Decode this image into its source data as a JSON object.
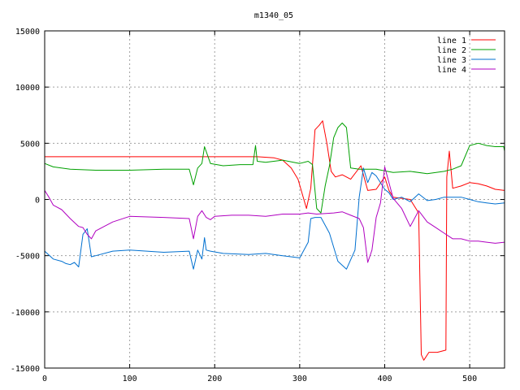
{
  "chart_data": {
    "type": "line",
    "title": "m1340_05",
    "xlabel": "",
    "ylabel": "",
    "xlim": [
      0,
      541
    ],
    "ylim": [
      -15000,
      15000
    ],
    "xticks": [
      0,
      100,
      200,
      300,
      400,
      500
    ],
    "yticks": [
      -15000,
      -10000,
      -5000,
      0,
      5000,
      10000,
      15000
    ],
    "grid": true,
    "legend_position": "top-right",
    "series": [
      {
        "name": "line 1",
        "color": "#ff0000",
        "x": [
          0,
          250,
          270,
          280,
          290,
          298,
          303,
          308,
          313,
          318,
          323,
          327,
          332,
          337,
          342,
          350,
          360,
          372,
          380,
          390,
          400,
          405,
          410,
          420,
          430,
          440,
          443,
          446,
          452,
          462,
          472,
          473,
          476,
          480,
          490,
          500,
          510,
          520,
          530,
          541
        ],
        "y": [
          3800,
          3800,
          3700,
          3500,
          2800,
          1800,
          500,
          -800,
          1000,
          6200,
          6600,
          7000,
          5000,
          2500,
          2000,
          2200,
          1800,
          3000,
          800,
          900,
          2000,
          800,
          200,
          100,
          0,
          -1200,
          -13800,
          -14300,
          -13600,
          -13600,
          -13400,
          2000,
          4300,
          1000,
          1200,
          1500,
          1400,
          1200,
          900,
          800
        ]
      },
      {
        "name": "line 2",
        "color": "#00a000",
        "x": [
          0,
          10,
          30,
          60,
          100,
          140,
          170,
          175,
          180,
          185,
          188,
          195,
          210,
          230,
          245,
          248,
          250,
          260,
          280,
          300,
          310,
          315,
          320,
          325,
          330,
          335,
          340,
          345,
          350,
          355,
          360,
          370,
          380,
          390,
          410,
          430,
          450,
          470,
          480,
          490,
          500,
          510,
          520,
          530,
          540,
          541
        ],
        "y": [
          3200,
          2900,
          2700,
          2600,
          2600,
          2700,
          2700,
          1300,
          2800,
          3200,
          4700,
          3200,
          3000,
          3100,
          3100,
          4800,
          3400,
          3300,
          3500,
          3200,
          3400,
          3100,
          -800,
          -1200,
          1200,
          3000,
          5500,
          6400,
          6800,
          6400,
          2800,
          2700,
          2700,
          2700,
          2400,
          2500,
          2300,
          2500,
          2700,
          3000,
          4800,
          5000,
          4800,
          4700,
          4700,
          4300
        ]
      },
      {
        "name": "line 3",
        "color": "#0070d0",
        "x": [
          0,
          10,
          20,
          25,
          30,
          35,
          40,
          45,
          50,
          55,
          60,
          80,
          100,
          140,
          170,
          175,
          180,
          185,
          188,
          190,
          195,
          210,
          240,
          260,
          280,
          300,
          310,
          313,
          318,
          325,
          335,
          345,
          355,
          365,
          370,
          375,
          380,
          385,
          390,
          400,
          405,
          410,
          420,
          430,
          440,
          450,
          460,
          470,
          480,
          490,
          500,
          510,
          520,
          530,
          541
        ],
        "y": [
          -4600,
          -5300,
          -5500,
          -5700,
          -5800,
          -5600,
          -6000,
          -3100,
          -2600,
          -5100,
          -5000,
          -4600,
          -4500,
          -4700,
          -4600,
          -6200,
          -4500,
          -5300,
          -3400,
          -4500,
          -4600,
          -4800,
          -4900,
          -4800,
          -5000,
          -5200,
          -3800,
          -1700,
          -1600,
          -1600,
          -3000,
          -5500,
          -6200,
          -4500,
          200,
          2800,
          1500,
          2400,
          2100,
          900,
          600,
          0,
          200,
          -200,
          500,
          -100,
          0,
          200,
          200,
          200,
          0,
          -200,
          -300,
          -400,
          -300
        ]
      },
      {
        "name": "line 4",
        "color": "#b000c0",
        "x": [
          0,
          5,
          10,
          20,
          30,
          40,
          45,
          50,
          55,
          60,
          80,
          100,
          140,
          170,
          175,
          180,
          185,
          190,
          195,
          200,
          220,
          240,
          260,
          280,
          300,
          310,
          320,
          340,
          350,
          360,
          370,
          375,
          380,
          385,
          390,
          395,
          400,
          410,
          420,
          430,
          440,
          450,
          460,
          470,
          480,
          490,
          500,
          510,
          520,
          530,
          541
        ],
        "y": [
          800,
          200,
          -500,
          -900,
          -1700,
          -2400,
          -2500,
          -3100,
          -3500,
          -2800,
          -2000,
          -1500,
          -1600,
          -1700,
          -3500,
          -1500,
          -1000,
          -1600,
          -1800,
          -1500,
          -1400,
          -1400,
          -1500,
          -1300,
          -1300,
          -1200,
          -1300,
          -1200,
          -1100,
          -1400,
          -1700,
          -2500,
          -5600,
          -4500,
          -1600,
          -300,
          2900,
          100,
          -800,
          -2400,
          -1000,
          -2000,
          -2500,
          -3000,
          -3500,
          -3500,
          -3700,
          -3700,
          -3800,
          -3900,
          -3800
        ]
      }
    ]
  }
}
